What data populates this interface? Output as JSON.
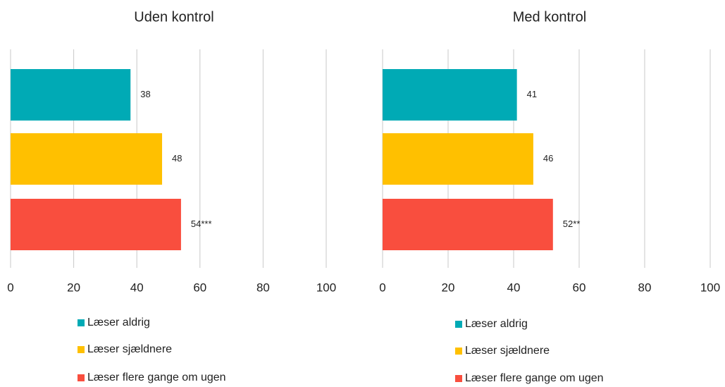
{
  "chart_data": [
    {
      "type": "bar",
      "title": "Uden  kontrol",
      "series": [
        {
          "name": "Læser aldrig",
          "color": "#00aab5",
          "values": [
            38
          ]
        },
        {
          "name": "Læser sjældnere",
          "color": "#ffc000",
          "values": [
            48
          ]
        },
        {
          "name": "Læser flere gange om ugen",
          "color": "#f94e3e",
          "values": [
            54
          ],
          "value_labels": [
            "54***"
          ]
        }
      ],
      "xlim": [
        0,
        100
      ],
      "xticks": [
        0,
        20,
        40,
        60,
        80,
        100
      ],
      "grid": true
    },
    {
      "type": "bar",
      "title": "Med kontrol",
      "series": [
        {
          "name": "Læser aldrig",
          "color": "#00aab5",
          "values": [
            41
          ]
        },
        {
          "name": "Læser sjældnere",
          "color": "#ffc000",
          "values": [
            46
          ]
        },
        {
          "name": "Læser flere gange om ugen",
          "color": "#f94e3e",
          "values": [
            52
          ],
          "value_labels": [
            "52**"
          ]
        }
      ],
      "xlim": [
        0,
        100
      ],
      "xticks": [
        0,
        20,
        40,
        60,
        80,
        100
      ],
      "grid": true
    }
  ]
}
